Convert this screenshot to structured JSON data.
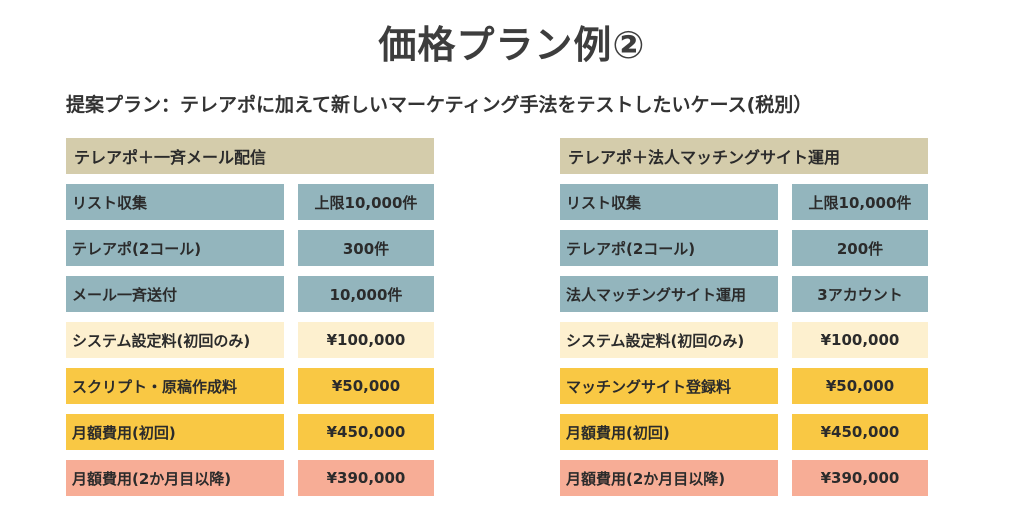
{
  "title": "価格プラン例②",
  "subtitle": "提案プラン：テレアポに加えて新しいマーケティング手法をテストしたいケース(税別）",
  "plans": [
    {
      "header": "テレアポ＋一斉メール配信",
      "rows": [
        {
          "label": "リスト収集",
          "value": "上限10,000件"
        },
        {
          "label": "テレアポ(2コール)",
          "value": "300件"
        },
        {
          "label": "メール一斉送付",
          "value": "10,000件"
        },
        {
          "label": "システム設定料(初回のみ)",
          "value": "¥100,000"
        },
        {
          "label": "スクリプト・原稿作成料",
          "value": "¥50,000"
        },
        {
          "label": "月額費用(初回)",
          "value": "¥450,000"
        },
        {
          "label": "月額費用(2か月目以降)",
          "value": "¥390,000"
        }
      ]
    },
    {
      "header": "テレアポ＋法人マッチングサイト運用",
      "rows": [
        {
          "label": "リスト収集",
          "value": "上限10,000件"
        },
        {
          "label": "テレアポ(2コール)",
          "value": "200件"
        },
        {
          "label": "法人マッチングサイト運用",
          "value": "3アカウント"
        },
        {
          "label": "システム設定料(初回のみ)",
          "value": "¥100,000"
        },
        {
          "label": "マッチングサイト登録料",
          "value": "¥50,000"
        },
        {
          "label": "月額費用(初回)",
          "value": "¥450,000"
        },
        {
          "label": "月額費用(2か月目以降)",
          "value": "¥390,000"
        }
      ]
    }
  ],
  "colors": {
    "header": "#d4ccab",
    "blue": "#93b5bd",
    "cream": "#fdf0cf",
    "gold": "#f9c844",
    "salmon": "#f7ad96"
  }
}
